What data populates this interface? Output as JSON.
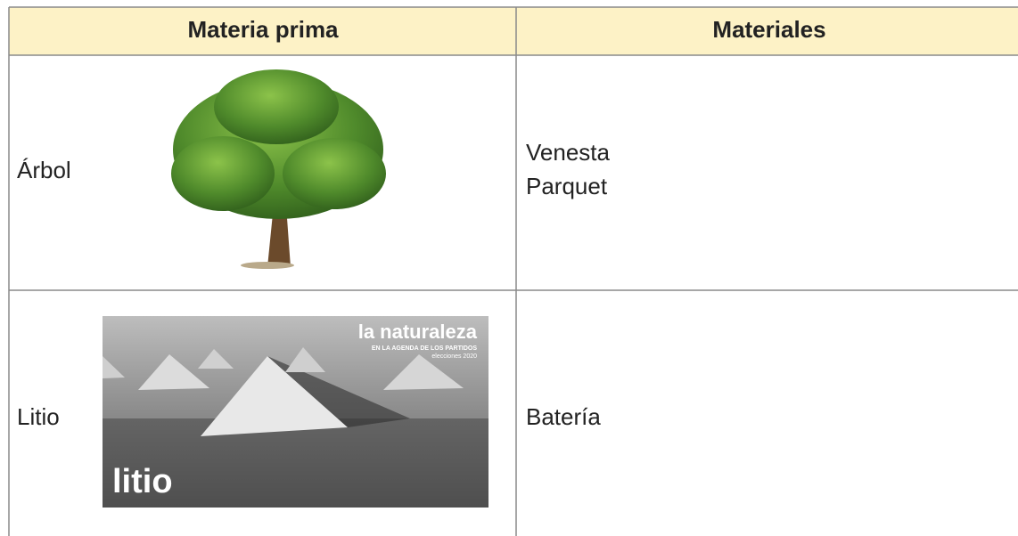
{
  "table": {
    "header": [
      "Materia prima",
      "Materiales"
    ],
    "rows": [
      {
        "raw": "Árbol",
        "materials": [
          "Venesta",
          "Parquet"
        ]
      },
      {
        "raw": "Litio",
        "materials": [
          "Batería"
        ],
        "image_text": {
          "headline": "la naturaleza",
          "kicker": "EN LA AGENDA DE LOS PARTIDOS",
          "tag": "elecciones 2020",
          "caption": "litio"
        }
      }
    ]
  }
}
